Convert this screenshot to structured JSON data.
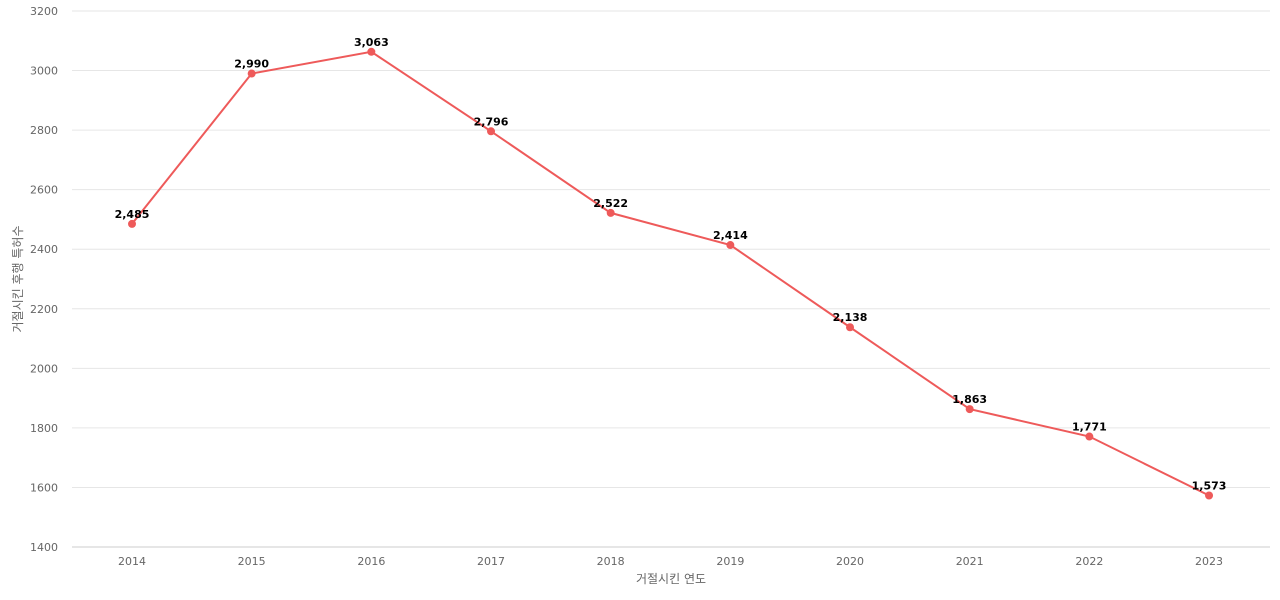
{
  "chart_data": {
    "type": "line",
    "xlabel": "거절시킨 연도",
    "ylabel": "거절시킨 후행 특허수",
    "categories": [
      "2014",
      "2015",
      "2016",
      "2017",
      "2018",
      "2019",
      "2020",
      "2021",
      "2022",
      "2023"
    ],
    "series": [
      {
        "values": [
          2485,
          2990,
          3063,
          2796,
          2522,
          2414,
          2138,
          1863,
          1771,
          1573
        ],
        "data_labels": [
          "2,485",
          "2,990",
          "3,063",
          "2,796",
          "2,522",
          "2,414",
          "2,138",
          "1,863",
          "1,771",
          "1,573"
        ],
        "color": "#ee5a5a"
      }
    ],
    "ylim": [
      1400,
      3200
    ],
    "yticks": [
      1400,
      1600,
      1800,
      2000,
      2200,
      2400,
      2600,
      2800,
      3000,
      3200
    ],
    "grid": true,
    "legend": "none"
  }
}
